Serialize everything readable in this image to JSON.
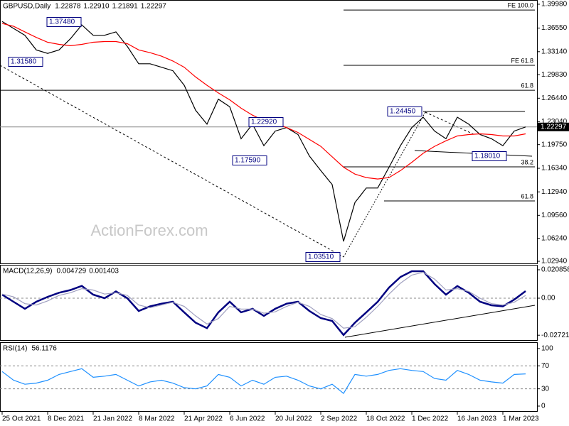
{
  "chart_data": [
    {
      "type": "line",
      "title": "GBPUSD,Daily",
      "header_values": [
        "1.22878",
        "1.22910",
        "1.21891",
        "1.22297"
      ],
      "watermark": "ActionForex.com",
      "categories": [
        "25 Oct 2021",
        null,
        null,
        null,
        "8 Dec 2021",
        null,
        null,
        null,
        "21 Jan 2022",
        null,
        null,
        null,
        "8 Mar 2022",
        null,
        null,
        null,
        "21 Apr 2022",
        null,
        null,
        null,
        "6 Jun 2022",
        null,
        null,
        null,
        "20 Jul 2022",
        null,
        null,
        null,
        "2 Sep 2022",
        null,
        null,
        null,
        "18 Oct 2022",
        null,
        null,
        null,
        "1 Dec 2022",
        null,
        null,
        null,
        "16 Jan 2023",
        null,
        null,
        null,
        "1 Mar 2023",
        null,
        null
      ],
      "series": [
        {
          "color": "#000000",
          "values": [
            1.375,
            1.365,
            1.355,
            1.334,
            1.329,
            1.334,
            1.35,
            1.37,
            1.355,
            1.355,
            1.36,
            1.339,
            1.314,
            1.314,
            1.309,
            1.304,
            1.283,
            1.247,
            1.227,
            1.263,
            1.252,
            1.206,
            1.227,
            1.196,
            1.217,
            1.222,
            1.212,
            1.181,
            1.16,
            1.14,
            1.058,
            1.114,
            1.135,
            1.135,
            1.165,
            1.196,
            1.222,
            1.237,
            1.217,
            1.206,
            1.237,
            1.227,
            1.212,
            1.206,
            1.196,
            1.217,
            1.223
          ]
        },
        {
          "color": "#ff0000",
          "values": [
            1.372,
            1.368,
            1.36,
            1.352,
            1.345,
            1.342,
            1.34,
            1.342,
            1.345,
            1.346,
            1.346,
            1.343,
            1.334,
            1.33,
            1.325,
            1.318,
            1.309,
            1.295,
            1.283,
            1.272,
            1.262,
            1.25,
            1.24,
            1.232,
            1.228,
            1.222,
            1.215,
            1.205,
            1.195,
            1.18,
            1.165,
            1.155,
            1.15,
            1.148,
            1.15,
            1.16,
            1.172,
            1.185,
            1.195,
            1.203,
            1.21,
            1.212,
            1.213,
            1.212,
            1.21,
            1.21,
            1.213
          ]
        }
      ],
      "ylim": [
        1.0253,
        1.4059
      ],
      "yticks": [
        {
          "value": 1.3998,
          "label": "1.39980"
        },
        {
          "value": 1.3655,
          "label": "1.36550"
        },
        {
          "value": 1.3314,
          "label": "1.33140"
        },
        {
          "value": 1.2983,
          "label": "1.29830"
        },
        {
          "value": 1.2644,
          "label": "1.26440"
        },
        {
          "value": 1.2304,
          "label": "1.23040"
        },
        {
          "value": 1.1975,
          "label": "1.19750"
        },
        {
          "value": 1.1634,
          "label": "1.16340"
        },
        {
          "value": 1.1294,
          "label": "1.12940"
        },
        {
          "value": 1.0956,
          "label": "1.09560"
        },
        {
          "value": 1.0624,
          "label": "1.06240"
        },
        {
          "value": 1.0294,
          "label": "1.02940"
        }
      ],
      "levels": [
        {
          "label": "FE 100.0",
          "value": 1.3915
        },
        {
          "label": "FE 61.8",
          "value": 1.3118
        },
        {
          "label": "61.8",
          "value": 1.2759
        },
        {
          "label": "38.2",
          "value": 1.1655
        },
        {
          "label": "61.8",
          "value": 1.1164
        }
      ],
      "last_price": {
        "value": 1.22297,
        "label": "1.22297"
      },
      "annotations": [
        "1.37480",
        "1.31580",
        "1.22920",
        "1.17590",
        "1.24450",
        "1.18010",
        "1.03510"
      ]
    },
    {
      "type": "line",
      "title": "MACD(12,26,9)",
      "header_values": [
        "0.004729",
        "0.001403"
      ],
      "series": [
        {
          "color": "#000080",
          "values": [
            0.0026,
            -0.0026,
            -0.0078,
            -0.0026,
            0.001,
            0.004,
            0.006,
            0.009,
            0.0026,
            0,
            0.005,
            0,
            -0.0094,
            -0.006,
            -0.004,
            -0.0026,
            -0.0104,
            -0.018,
            -0.022,
            -0.0104,
            -0.0026,
            -0.0104,
            -0.0078,
            -0.013,
            -0.0078,
            -0.004,
            -0.0026,
            -0.0094,
            -0.0146,
            -0.0167,
            -0.027,
            -0.018,
            -0.0104,
            -0.0026,
            0.0078,
            0.0156,
            0.0198,
            0.0198,
            0.0104,
            0.0026,
            0.0089,
            0.004,
            -0.0026,
            -0.0052,
            -0.006,
            -0.001,
            0.0052
          ]
        },
        {
          "color": "#a0a0c0",
          "values": [
            0.003,
            0.001,
            -0.004,
            -0.005,
            -0.002,
            0.002,
            0.004,
            0.007,
            0.006,
            0.003,
            0.004,
            0.002,
            -0.005,
            -0.007,
            -0.005,
            -0.003,
            -0.006,
            -0.013,
            -0.019,
            -0.015,
            -0.006,
            -0.008,
            -0.008,
            -0.011,
            -0.01,
            -0.006,
            -0.003,
            -0.006,
            -0.012,
            -0.015,
            -0.022,
            -0.021,
            -0.014,
            -0.006,
            0.003,
            0.011,
            0.017,
            0.019,
            0.014,
            0.006,
            0.007,
            0.005,
            0,
            -0.004,
            -0.005,
            -0.003,
            0.002
          ]
        }
      ],
      "ylim": [
        -0.0313,
        0.0245
      ],
      "yticks": [
        0.020858,
        {
          "value": 0,
          "label": "0.00"
        },
        -0.027213
      ],
      "grid_lines": [
        0
      ]
    },
    {
      "type": "line",
      "title": "RSI(14)",
      "header_values": [
        "56.1176"
      ],
      "series": [
        {
          "color": "#1e90ff",
          "values": [
            60,
            45,
            38,
            40,
            45,
            55,
            60,
            65,
            50,
            52,
            55,
            45,
            35,
            42,
            45,
            40,
            32,
            30,
            35,
            55,
            50,
            35,
            45,
            38,
            50,
            52,
            45,
            35,
            30,
            38,
            22,
            55,
            52,
            55,
            62,
            65,
            62,
            60,
            48,
            45,
            62,
            55,
            45,
            42,
            40,
            55,
            56
          ]
        }
      ],
      "ylim": [
        -9.9,
        111
      ],
      "yticks": [
        100,
        70,
        30,
        0
      ],
      "grid_lines": [
        70,
        30
      ]
    }
  ]
}
